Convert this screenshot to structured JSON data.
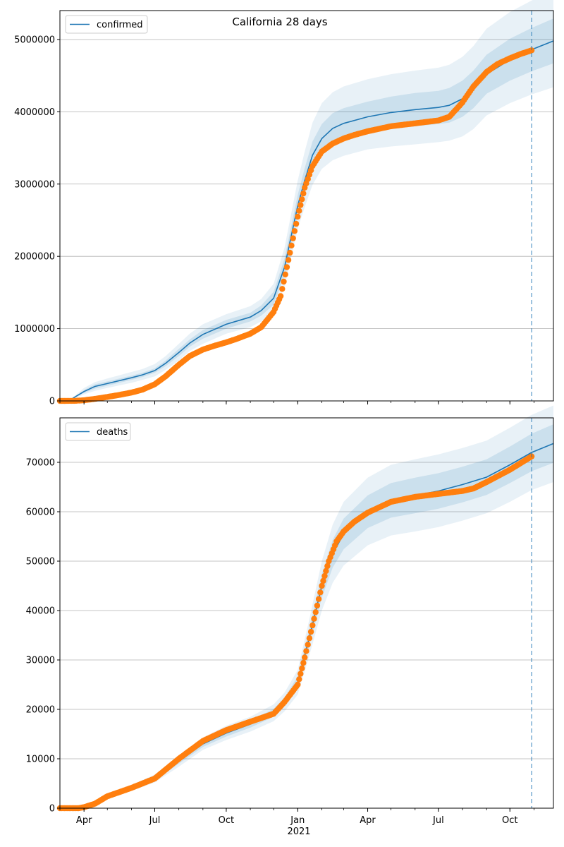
{
  "figure": {
    "title": "California 28 days",
    "xaxis_year_label": "2021",
    "x_tick_labels": [
      "Apr",
      "Jul",
      "Oct",
      "Jan",
      "Apr",
      "Jul",
      "Oct"
    ]
  },
  "colors": {
    "model_line": "#1f77b4",
    "observed": "#ff7f0e",
    "band": "#1f77b4",
    "grid": "#b0b0b0",
    "vline": "#1f77b4"
  },
  "chart_data": [
    {
      "type": "line",
      "panel": "top",
      "legend": "confirmed",
      "legend_position": "upper-left",
      "grid": "y",
      "xlim": [
        "2020-03-01",
        "2021-11-26"
      ],
      "ylim": [
        0,
        5400000
      ],
      "y_ticks": [
        0,
        1000000,
        2000000,
        3000000,
        4000000,
        5000000
      ],
      "y_tick_labels": [
        "0",
        "1000000",
        "2000000",
        "3000000",
        "4000000",
        "5000000"
      ],
      "x_tick_dates": [
        "2020-04-01",
        "2020-07-01",
        "2020-10-01",
        "2021-01-01",
        "2021-04-01",
        "2021-07-01",
        "2021-10-01"
      ],
      "forecast_start": "2021-10-29",
      "model": {
        "x": [
          "2020-03-01",
          "2020-03-12",
          "2020-04-01",
          "2020-04-15",
          "2020-05-01",
          "2020-06-01",
          "2020-06-15",
          "2020-07-01",
          "2020-07-15",
          "2020-08-01",
          "2020-08-15",
          "2020-09-01",
          "2020-10-01",
          "2020-11-01",
          "2020-11-15",
          "2020-12-01",
          "2020-12-15",
          "2021-01-01",
          "2021-01-10",
          "2021-01-20",
          "2021-02-01",
          "2021-02-15",
          "2021-03-01",
          "2021-04-01",
          "2021-05-01",
          "2021-06-01",
          "2021-07-01",
          "2021-07-15",
          "2021-08-01",
          "2021-08-15",
          "2021-09-01",
          "2021-10-01",
          "2021-10-29",
          "2021-11-26"
        ],
        "y": [
          0,
          0,
          130000,
          200000,
          240000,
          320000,
          360000,
          420000,
          520000,
          670000,
          800000,
          920000,
          1060000,
          1160000,
          1250000,
          1420000,
          1850000,
          2700000,
          3050000,
          3400000,
          3630000,
          3770000,
          3840000,
          3930000,
          3990000,
          4030000,
          4060000,
          4090000,
          4180000,
          4310000,
          4520000,
          4720000,
          4860000,
          4980000
        ],
        "y_lower_inner": [
          0,
          0,
          110000,
          170000,
          210000,
          290000,
          330000,
          390000,
          480000,
          620000,
          750000,
          860000,
          1000000,
          1100000,
          1180000,
          1330000,
          1730000,
          2550000,
          2880000,
          3210000,
          3430000,
          3560000,
          3630000,
          3720000,
          3770000,
          3800000,
          3830000,
          3850000,
          3930000,
          4050000,
          4250000,
          4430000,
          4560000,
          4670000
        ],
        "y_upper_inner": [
          0,
          0,
          150000,
          230000,
          270000,
          350000,
          390000,
          450000,
          560000,
          720000,
          850000,
          980000,
          1120000,
          1220000,
          1320000,
          1510000,
          1970000,
          2850000,
          3220000,
          3590000,
          3830000,
          3980000,
          4050000,
          4140000,
          4210000,
          4260000,
          4290000,
          4330000,
          4430000,
          4570000,
          4790000,
          5010000,
          5160000,
          5290000
        ],
        "y_lower_outer": [
          0,
          0,
          90000,
          140000,
          180000,
          250000,
          290000,
          340000,
          430000,
          560000,
          690000,
          790000,
          930000,
          1020000,
          1100000,
          1230000,
          1580000,
          2380000,
          2680000,
          2990000,
          3210000,
          3330000,
          3390000,
          3480000,
          3520000,
          3550000,
          3580000,
          3600000,
          3660000,
          3760000,
          3950000,
          4120000,
          4240000,
          4340000
        ],
        "y_upper_outer": [
          0,
          0,
          180000,
          260000,
          310000,
          400000,
          440000,
          510000,
          620000,
          790000,
          930000,
          1060000,
          1200000,
          1310000,
          1410000,
          1620000,
          2120000,
          3050000,
          3450000,
          3850000,
          4120000,
          4270000,
          4350000,
          4450000,
          4520000,
          4570000,
          4610000,
          4650000,
          4760000,
          4910000,
          5150000,
          5380000,
          5540000,
          5680000
        ]
      },
      "observed": {
        "x": [
          "2020-03-01",
          "2020-03-20",
          "2020-04-01",
          "2020-04-15",
          "2020-05-01",
          "2020-05-15",
          "2020-06-01",
          "2020-06-15",
          "2020-07-01",
          "2020-07-15",
          "2020-08-01",
          "2020-08-15",
          "2020-09-01",
          "2020-09-15",
          "2020-10-01",
          "2020-10-15",
          "2020-11-01",
          "2020-11-15",
          "2020-12-01",
          "2020-12-10",
          "2020-12-20",
          "2021-01-01",
          "2021-01-10",
          "2021-01-20",
          "2021-02-01",
          "2021-02-15",
          "2021-03-01",
          "2021-03-15",
          "2021-04-01",
          "2021-05-01",
          "2021-06-01",
          "2021-07-01",
          "2021-07-15",
          "2021-08-01",
          "2021-08-15",
          "2021-09-01",
          "2021-09-15",
          "2021-10-01",
          "2021-10-15",
          "2021-10-29"
        ],
        "y": [
          0,
          1000,
          9000,
          28000,
          55000,
          80000,
          115000,
          155000,
          230000,
          340000,
          500000,
          620000,
          710000,
          760000,
          810000,
          860000,
          930000,
          1020000,
          1230000,
          1450000,
          1950000,
          2550000,
          2950000,
          3250000,
          3450000,
          3560000,
          3630000,
          3680000,
          3730000,
          3800000,
          3840000,
          3880000,
          3930000,
          4130000,
          4350000,
          4550000,
          4660000,
          4740000,
          4800000,
          4850000
        ]
      }
    },
    {
      "type": "line",
      "panel": "bottom",
      "legend": "deaths",
      "legend_position": "upper-left",
      "grid": "y",
      "xlim": [
        "2020-03-01",
        "2021-11-26"
      ],
      "ylim": [
        0,
        79000
      ],
      "y_ticks": [
        0,
        10000,
        20000,
        30000,
        40000,
        50000,
        60000,
        70000
      ],
      "y_tick_labels": [
        "0",
        "10000",
        "20000",
        "30000",
        "40000",
        "50000",
        "60000",
        "70000"
      ],
      "x_tick_dates": [
        "2020-04-01",
        "2020-07-01",
        "2020-10-01",
        "2021-01-01",
        "2021-04-01",
        "2021-07-01",
        "2021-10-01"
      ],
      "forecast_start": "2021-10-29",
      "model": {
        "x": [
          "2020-03-01",
          "2020-03-25",
          "2020-04-15",
          "2020-05-01",
          "2020-06-01",
          "2020-07-01",
          "2020-08-01",
          "2020-09-01",
          "2020-10-01",
          "2020-11-01",
          "2020-12-01",
          "2020-12-15",
          "2021-01-01",
          "2021-01-15",
          "2021-02-01",
          "2021-02-15",
          "2021-03-01",
          "2021-04-01",
          "2021-05-01",
          "2021-06-01",
          "2021-07-01",
          "2021-08-01",
          "2021-09-01",
          "2021-10-01",
          "2021-10-29",
          "2021-11-26"
        ],
        "y": [
          0,
          0,
          800,
          2400,
          4100,
          6000,
          9500,
          13000,
          15200,
          17000,
          19300,
          21500,
          25500,
          34000,
          45000,
          51500,
          55500,
          60000,
          62300,
          63300,
          64200,
          65500,
          67000,
          69500,
          72000,
          73800
        ],
        "y_lower_inner": [
          0,
          0,
          700,
          2200,
          3800,
          5600,
          9000,
          12400,
          14500,
          16300,
          18500,
          20600,
          24300,
          32300,
          42600,
          48700,
          52400,
          56700,
          58800,
          59700,
          60600,
          61900,
          63400,
          65800,
          68200,
          69900
        ],
        "y_upper_inner": [
          0,
          0,
          900,
          2600,
          4400,
          6400,
          10000,
          13600,
          15900,
          17700,
          20100,
          22400,
          26700,
          35700,
          47400,
          54300,
          58600,
          63300,
          65800,
          66900,
          67800,
          69100,
          70600,
          73200,
          75800,
          77700
        ],
        "y_lower_outer": [
          0,
          0,
          600,
          2000,
          3500,
          5200,
          8400,
          11800,
          13800,
          15500,
          17600,
          19600,
          23000,
          30400,
          40000,
          45600,
          49100,
          53200,
          55200,
          56000,
          56900,
          58200,
          59700,
          62000,
          64400,
          66000
        ],
        "y_upper_outer": [
          0,
          0,
          1000,
          2800,
          4700,
          6800,
          10600,
          14300,
          16700,
          18500,
          21000,
          23400,
          28000,
          37600,
          50000,
          57400,
          62000,
          66900,
          69500,
          70600,
          71600,
          72900,
          74400,
          77000,
          79600,
          81500
        ]
      },
      "observed": {
        "x": [
          "2020-03-01",
          "2020-03-25",
          "2020-04-01",
          "2020-04-15",
          "2020-05-01",
          "2020-06-01",
          "2020-07-01",
          "2020-08-01",
          "2020-09-01",
          "2020-10-01",
          "2020-11-01",
          "2020-12-01",
          "2020-12-15",
          "2021-01-01",
          "2021-01-10",
          "2021-01-20",
          "2021-02-01",
          "2021-02-10",
          "2021-02-20",
          "2021-03-01",
          "2021-03-15",
          "2021-04-01",
          "2021-05-01",
          "2021-06-01",
          "2021-07-01",
          "2021-08-01",
          "2021-08-15",
          "2021-09-01",
          "2021-10-01",
          "2021-10-29"
        ],
        "y": [
          0,
          0,
          200,
          900,
          2400,
          4100,
          6000,
          10000,
          13600,
          15800,
          17500,
          19100,
          21500,
          25000,
          30500,
          37000,
          45000,
          50000,
          54000,
          56000,
          58000,
          59800,
          62000,
          63000,
          63600,
          64200,
          64700,
          66000,
          68500,
          71200
        ]
      }
    }
  ]
}
